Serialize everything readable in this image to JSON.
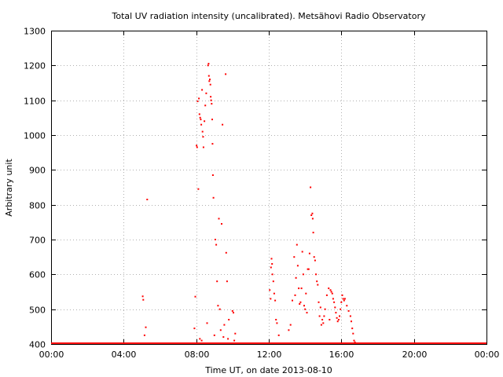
{
  "chart_data": {
    "type": "scatter",
    "title": "Total UV radiation intensity (uncalibrated). Metsähovi Radio Observatory",
    "xlabel": "Time UT, on date 2013-08-10",
    "ylabel": "Arbitrary unit",
    "xlim_hours": [
      0,
      24
    ],
    "ylim": [
      400,
      1300
    ],
    "x_ticks": [
      {
        "hour": 0,
        "label": "00:00"
      },
      {
        "hour": 4,
        "label": "04:00"
      },
      {
        "hour": 8,
        "label": "08:00"
      },
      {
        "hour": 12,
        "label": "12:00"
      },
      {
        "hour": 16,
        "label": "16:00"
      },
      {
        "hour": 20,
        "label": "20:00"
      },
      {
        "hour": 24,
        "label": "00:00"
      }
    ],
    "y_ticks": [
      400,
      500,
      600,
      700,
      800,
      900,
      1000,
      1100,
      1200,
      1300
    ],
    "grid": true,
    "marker_color": "#ff0000",
    "series": [
      {
        "name": "",
        "points": [
          [
            5.05,
            537
          ],
          [
            5.08,
            527
          ],
          [
            5.15,
            425
          ],
          [
            5.22,
            448
          ],
          [
            5.3,
            815
          ],
          [
            7.95,
            536
          ],
          [
            8.02,
            970
          ],
          [
            8.05,
            965
          ],
          [
            8.08,
            1097
          ],
          [
            8.12,
            845
          ],
          [
            8.15,
            1105
          ],
          [
            8.18,
            1060
          ],
          [
            8.22,
            1050
          ],
          [
            8.25,
            1045
          ],
          [
            8.28,
            1030
          ],
          [
            8.32,
            1130
          ],
          [
            8.35,
            1010
          ],
          [
            8.38,
            995
          ],
          [
            8.4,
            965
          ],
          [
            8.45,
            1040
          ],
          [
            8.5,
            1085
          ],
          [
            8.55,
            1120
          ],
          [
            8.65,
            1200
          ],
          [
            8.68,
            1205
          ],
          [
            8.7,
            1170
          ],
          [
            8.72,
            1155
          ],
          [
            8.75,
            1160
          ],
          [
            8.78,
            1145
          ],
          [
            8.8,
            1110
          ],
          [
            8.82,
            1100
          ],
          [
            8.85,
            1090
          ],
          [
            8.88,
            1045
          ],
          [
            8.9,
            975
          ],
          [
            8.92,
            885
          ],
          [
            8.95,
            820
          ],
          [
            9.05,
            700
          ],
          [
            9.1,
            685
          ],
          [
            9.15,
            580
          ],
          [
            9.2,
            510
          ],
          [
            9.25,
            760
          ],
          [
            9.3,
            500
          ],
          [
            9.4,
            745
          ],
          [
            9.45,
            1030
          ],
          [
            9.55,
            455
          ],
          [
            9.62,
            1175
          ],
          [
            9.65,
            662
          ],
          [
            9.7,
            580
          ],
          [
            9.8,
            470
          ],
          [
            10.0,
            495
          ],
          [
            10.05,
            490
          ],
          [
            10.15,
            430
          ],
          [
            7.9,
            445
          ],
          [
            8.2,
            415
          ],
          [
            8.3,
            410
          ],
          [
            8.6,
            460
          ],
          [
            9.0,
            425
          ],
          [
            9.35,
            440
          ],
          [
            9.5,
            420
          ],
          [
            9.75,
            415
          ],
          [
            10.1,
            410
          ],
          [
            12.05,
            555
          ],
          [
            12.1,
            530
          ],
          [
            12.12,
            620
          ],
          [
            12.15,
            645
          ],
          [
            12.18,
            630
          ],
          [
            12.2,
            600
          ],
          [
            12.25,
            580
          ],
          [
            12.3,
            545
          ],
          [
            12.35,
            525
          ],
          [
            12.4,
            470
          ],
          [
            12.45,
            460
          ],
          [
            12.55,
            425
          ],
          [
            13.1,
            440
          ],
          [
            13.2,
            455
          ],
          [
            13.3,
            525
          ],
          [
            13.4,
            650
          ],
          [
            13.45,
            540
          ],
          [
            13.5,
            590
          ],
          [
            13.55,
            685
          ],
          [
            13.6,
            625
          ],
          [
            13.65,
            560
          ],
          [
            13.7,
            515
          ],
          [
            13.75,
            520
          ],
          [
            13.8,
            560
          ],
          [
            13.85,
            665
          ],
          [
            13.9,
            600
          ],
          [
            13.95,
            510
          ],
          [
            14.0,
            500
          ],
          [
            14.05,
            545
          ],
          [
            14.1,
            490
          ],
          [
            14.15,
            615
          ],
          [
            14.2,
            615
          ],
          [
            14.25,
            660
          ],
          [
            14.3,
            850
          ],
          [
            14.35,
            770
          ],
          [
            14.4,
            775
          ],
          [
            14.42,
            760
          ],
          [
            14.45,
            720
          ],
          [
            14.5,
            650
          ],
          [
            14.55,
            640
          ],
          [
            14.6,
            600
          ],
          [
            14.65,
            580
          ],
          [
            14.7,
            570
          ],
          [
            14.75,
            520
          ],
          [
            14.8,
            480
          ],
          [
            14.85,
            505
          ],
          [
            14.9,
            455
          ],
          [
            14.95,
            470
          ],
          [
            15.0,
            460
          ],
          [
            15.05,
            480
          ],
          [
            15.1,
            500
          ],
          [
            15.2,
            540
          ],
          [
            15.3,
            560
          ],
          [
            15.35,
            470
          ],
          [
            15.4,
            555
          ],
          [
            15.45,
            550
          ],
          [
            15.5,
            545
          ],
          [
            15.55,
            530
          ],
          [
            15.6,
            520
          ],
          [
            15.65,
            505
          ],
          [
            15.7,
            490
          ],
          [
            15.75,
            475
          ],
          [
            15.8,
            465
          ],
          [
            15.85,
            470
          ],
          [
            15.9,
            480
          ],
          [
            15.95,
            500
          ],
          [
            16.0,
            520
          ],
          [
            16.05,
            540
          ],
          [
            16.1,
            530
          ],
          [
            16.15,
            525
          ],
          [
            16.2,
            530
          ],
          [
            16.3,
            510
          ],
          [
            16.4,
            495
          ],
          [
            16.5,
            480
          ],
          [
            16.55,
            465
          ],
          [
            16.6,
            445
          ],
          [
            16.65,
            430
          ],
          [
            16.7,
            410
          ],
          [
            16.75,
            405
          ]
        ]
      }
    ]
  }
}
